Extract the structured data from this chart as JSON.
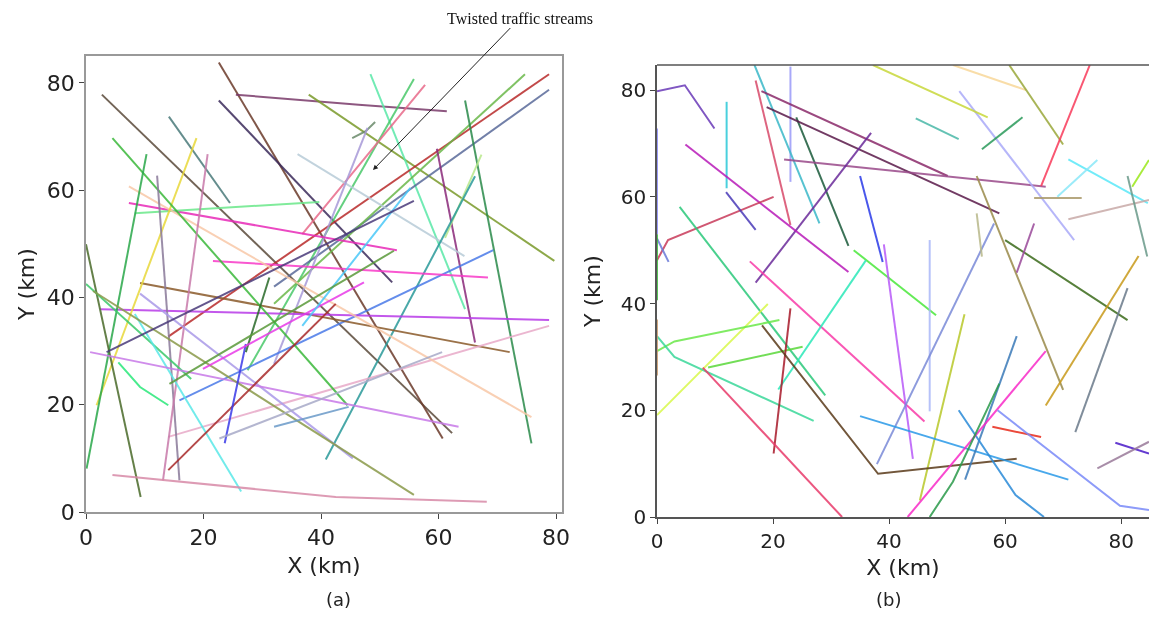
{
  "chart_data": [
    {
      "type": "line",
      "xlabel": "X (km)",
      "ylabel": "Y (km)",
      "xlim": [
        0,
        81
      ],
      "ylim": [
        0,
        85
      ],
      "xticks": [
        0,
        20,
        40,
        60,
        80
      ],
      "yticks": [
        0,
        20,
        40,
        60,
        80
      ],
      "annotations": [
        "Twisted traffic streams",
        "(a)"
      ],
      "series": [
        {
          "color": "#5a4a3a",
          "x": [
            2.7,
            62.3
          ],
          "values": [
            77.8,
            14.7
          ]
        },
        {
          "color": "#6b3a2a",
          "x": [
            22.6,
            60.7
          ],
          "values": [
            83.8,
            13.7
          ]
        },
        {
          "color": "#7a3a6a",
          "x": [
            25.5,
            46.4,
            61.4
          ],
          "values": [
            77.8,
            75.9,
            74.7
          ]
        },
        {
          "color": "#3a2a5a",
          "x": [
            22.6,
            52.1
          ],
          "values": [
            76.7,
            42.8
          ]
        },
        {
          "color": "#7a9a2a",
          "x": [
            37.9,
            79.7
          ],
          "values": [
            77.8,
            46.8
          ]
        },
        {
          "color": "#5ae8a8",
          "x": [
            48.4,
            64.5
          ],
          "values": [
            81.6,
            37.8
          ]
        },
        {
          "color": "#4ac86a",
          "x": [
            55.8,
            27.5
          ],
          "values": [
            80.7,
            26.4
          ]
        },
        {
          "color": "#e86a8a",
          "x": [
            57.7,
            36.8
          ],
          "values": [
            79.6,
            51.8
          ]
        },
        {
          "color": "#b82a2a",
          "x": [
            78.8,
            14.0
          ],
          "values": [
            81.6,
            32.7
          ]
        },
        {
          "color": "#5a6a9a",
          "x": [
            78.8,
            32.0
          ],
          "values": [
            78.7,
            42.0
          ]
        },
        {
          "color": "#6ab84a",
          "x": [
            74.7,
            32.0
          ],
          "values": [
            81.6,
            38.8
          ]
        },
        {
          "color": "#2a8a4a",
          "x": [
            64.5,
            75.8
          ],
          "values": [
            76.7,
            12.8
          ]
        },
        {
          "color": "#8a2a7a",
          "x": [
            59.7,
            66.2
          ],
          "values": [
            67.7,
            31.6
          ]
        },
        {
          "color": "#b8ccd8",
          "x": [
            36.0,
            64.4
          ],
          "values": [
            66.7,
            47.7
          ]
        },
        {
          "color": "#b8e88a",
          "x": [
            67.3,
            61.1
          ],
          "values": [
            66.6,
            51.1
          ]
        },
        {
          "color": "#2a9a9a",
          "x": [
            66.2,
            40.8
          ],
          "values": [
            62.6,
            9.8
          ]
        },
        {
          "color": "#6a8a6a",
          "x": [
            49.2,
            47.6,
            45.3
          ],
          "values": [
            72.7,
            71.0,
            69.7
          ]
        },
        {
          "color": "#a89ad8",
          "x": [
            47.9,
            32.0
          ],
          "values": [
            71.6,
            27.6
          ]
        },
        {
          "color": "#4a7ae8",
          "x": [
            69.3,
            15.9
          ],
          "values": [
            48.8,
            20.8
          ]
        },
        {
          "color": "#e82ab8",
          "x": [
            7.3,
            52.9
          ],
          "values": [
            57.6,
            48.8
          ]
        },
        {
          "color": "#6ae88a",
          "x": [
            8.3,
            39.7
          ],
          "values": [
            55.7,
            57.8
          ]
        },
        {
          "color": "#f83ac8",
          "x": [
            21.6,
            68.4
          ],
          "values": [
            46.8,
            43.7
          ]
        },
        {
          "color": "#8a5a2a",
          "x": [
            9.2,
            72.1
          ],
          "values": [
            42.7,
            29.8
          ]
        },
        {
          "color": "#b83ae8",
          "x": [
            2.5,
            78.8
          ],
          "values": [
            37.8,
            35.8
          ]
        },
        {
          "color": "#e8aac8",
          "x": [
            78.8,
            14.0
          ],
          "values": [
            34.7,
            14.0
          ]
        },
        {
          "color": "#f8c8a8",
          "x": [
            7.3,
            75.8
          ],
          "values": [
            60.7,
            17.7
          ]
        },
        {
          "color": "#4a7a7a",
          "x": [
            14.1,
            24.5
          ],
          "values": [
            73.7,
            57.6
          ]
        },
        {
          "color": "#e8d83a",
          "x": [
            18.8,
            1.8
          ],
          "values": [
            69.7,
            19.9
          ]
        },
        {
          "color": "#3ab83a",
          "x": [
            4.5,
            44.5
          ],
          "values": [
            69.7,
            19.9
          ]
        },
        {
          "color": "#2aa84a",
          "x": [
            10.3,
            0.1
          ],
          "values": [
            66.7,
            8.1
          ]
        },
        {
          "color": "#8a7a9a",
          "x": [
            12.1,
            15.9
          ],
          "values": [
            62.7,
            5.9
          ]
        },
        {
          "color": "#c87aaa",
          "x": [
            20.7,
            13.1
          ],
          "values": [
            66.7,
            5.9
          ]
        },
        {
          "color": "#4a6a2a",
          "x": [
            0.0,
            9.3
          ],
          "values": [
            49.9,
            2.8
          ]
        },
        {
          "color": "#3ac86a",
          "x": [
            0.0,
            17.9
          ],
          "values": [
            42.5,
            24.8
          ]
        },
        {
          "color": "#aa9ae8",
          "x": [
            9.2,
            45.4
          ],
          "values": [
            40.7,
            10.0
          ]
        },
        {
          "color": "#5ae8e8",
          "x": [
            8.3,
            26.4
          ],
          "values": [
            36.9,
            3.8
          ]
        },
        {
          "color": "#2ae87a",
          "x": [
            5.5,
            9.2,
            14.0
          ],
          "values": [
            27.9,
            23.3,
            19.9
          ]
        },
        {
          "color": "#c87ae8",
          "x": [
            0.7,
            63.4
          ],
          "values": [
            29.8,
            15.9
          ]
        },
        {
          "color": "#8a9a4a",
          "x": [
            1.2,
            55.8
          ],
          "values": [
            41.2,
            3.2
          ]
        },
        {
          "color": "#d88aa8",
          "x": [
            4.5,
            42.5,
            68.2
          ],
          "values": [
            6.9,
            2.8,
            1.9
          ]
        },
        {
          "color": "#a82a2a",
          "x": [
            42.5,
            14.0
          ],
          "values": [
            38.8,
            7.8
          ]
        },
        {
          "color": "#3a3ae8",
          "x": [
            27.2,
            23.6
          ],
          "values": [
            31.3,
            12.8
          ]
        },
        {
          "color": "#2a6a2a",
          "x": [
            31.2,
            27.2
          ],
          "values": [
            43.7,
            29.8
          ]
        },
        {
          "color": "#e83ae8",
          "x": [
            47.3,
            19.9
          ],
          "values": [
            42.8,
            26.7
          ]
        },
        {
          "color": "#4ac8f8",
          "x": [
            55.2,
            36.8
          ],
          "values": [
            60.4,
            34.7
          ]
        },
        {
          "color": "#a8aac8",
          "x": [
            60.6,
            22.7
          ],
          "values": [
            29.8,
            13.7
          ]
        },
        {
          "color": "#6a9ac8",
          "x": [
            32.0,
            44.7
          ],
          "values": [
            15.9,
            19.6
          ]
        },
        {
          "color": "#5a9a3a",
          "x": [
            52.4,
            14.2
          ],
          "values": [
            48.7,
            23.9
          ]
        },
        {
          "color": "#4a3a7a",
          "x": [
            55.8,
            3.5
          ],
          "values": [
            58.0,
            29.8
          ]
        }
      ]
    },
    {
      "type": "line",
      "xlabel": "X (km)",
      "ylabel": "Y (km)",
      "xlim": [
        0,
        84.8
      ],
      "ylim": [
        0,
        84.7
      ],
      "xticks": [
        0,
        20,
        40,
        60,
        80
      ],
      "yticks": [
        0,
        20,
        40,
        60,
        80
      ],
      "annotations": [
        "(b)"
      ],
      "series": [
        {
          "color": "#6a3ab8",
          "x": [
            0,
            4.8,
            9.9
          ],
          "values": [
            79.8,
            80.9,
            72.8
          ]
        },
        {
          "color": "#2ac8d8",
          "x": [
            12,
            12
          ],
          "values": [
            77.8,
            61.6
          ]
        },
        {
          "color": "#9a9af8",
          "x": [
            23,
            23
          ],
          "values": [
            84.4,
            62.8
          ]
        },
        {
          "color": "#3ab8c8",
          "x": [
            16.8,
            28
          ],
          "values": [
            84.7,
            55
          ]
        },
        {
          "color": "#d84a6a",
          "x": [
            17,
            23
          ],
          "values": [
            81.8,
            54.7
          ]
        },
        {
          "color": "#1a5a3a",
          "x": [
            24,
            33
          ],
          "values": [
            74.9,
            50.8
          ]
        },
        {
          "color": "#8a2a6a",
          "x": [
            18,
            50.1
          ],
          "values": [
            79.8,
            63.9
          ]
        },
        {
          "color": "#5a1a4a",
          "x": [
            18.9,
            59
          ],
          "values": [
            76.8,
            56.9
          ]
        },
        {
          "color": "#9a4a8a",
          "x": [
            21.9,
            67
          ],
          "values": [
            67,
            61.9
          ]
        },
        {
          "color": "#6a2a9a",
          "x": [
            36.9,
            17
          ],
          "values": [
            72,
            43.9
          ]
        },
        {
          "color": "#b81ab8",
          "x": [
            4.9,
            33
          ],
          "values": [
            69.8,
            45.9
          ]
        },
        {
          "color": "#c83a5a",
          "x": [
            0,
            1.9,
            20.1
          ],
          "values": [
            48.1,
            51.9,
            60
          ]
        },
        {
          "color": "#4a3ab8",
          "x": [
            11.9,
            17
          ],
          "values": [
            60.9,
            53.8
          ]
        },
        {
          "color": "#6a7ad8",
          "x": [
            0,
            2
          ],
          "values": [
            52.2,
            47.8
          ]
        },
        {
          "color": "#2ac87a",
          "x": [
            3.9,
            29
          ],
          "values": [
            58.1,
            22.8
          ]
        },
        {
          "color": "#f83aa8",
          "x": [
            16,
            46.1
          ],
          "values": [
            47.9,
            17.9
          ]
        },
        {
          "color": "#2a3ae8",
          "x": [
            35,
            38.9
          ],
          "values": [
            63.9,
            47.8
          ]
        },
        {
          "color": "#4ae83a",
          "x": [
            33.9,
            48.1
          ],
          "values": [
            50,
            37.8
          ]
        },
        {
          "color": "#2ae8b8",
          "x": [
            36,
            20.9
          ],
          "values": [
            48.1,
            23.9
          ]
        },
        {
          "color": "#b85af8",
          "x": [
            39.1,
            44.1
          ],
          "values": [
            51.1,
            10.9
          ]
        },
        {
          "color": "#aab8f8",
          "x": [
            47,
            47
          ],
          "values": [
            51.9,
            19.8
          ]
        },
        {
          "color": "#7a8ad8",
          "x": [
            58.1,
            37.9
          ],
          "values": [
            55,
            9.9
          ]
        },
        {
          "color": "#b8c82a",
          "x": [
            53,
            45.3
          ],
          "values": [
            38,
            3.1
          ]
        },
        {
          "color": "#d8f84a",
          "x": [
            19.1,
            0
          ],
          "values": [
            39.9,
            19.1
          ]
        },
        {
          "color": "#6ae84a",
          "x": [
            0,
            3,
            21.1
          ],
          "values": [
            31.1,
            32.9,
            36.9
          ]
        },
        {
          "color": "#5ad83a",
          "x": [
            8.8,
            25.1
          ],
          "values": [
            28,
            31.9
          ]
        },
        {
          "color": "#3ad89a",
          "x": [
            0,
            3,
            27
          ],
          "values": [
            33.9,
            30,
            18
          ]
        },
        {
          "color": "#a81a2a",
          "x": [
            23,
            20.1
          ],
          "values": [
            39.1,
            11.9
          ]
        },
        {
          "color": "#e83a6a",
          "x": [
            7.9,
            31.9
          ],
          "values": [
            28,
            0
          ]
        },
        {
          "color": "#5a3a1a",
          "x": [
            18.1,
            38.1,
            62
          ],
          "values": [
            35.9,
            8.1,
            10.9
          ]
        },
        {
          "color": "#2a9ae8",
          "x": [
            35,
            70.9
          ],
          "values": [
            18.9,
            7
          ]
        },
        {
          "color": "#3a7ab8",
          "x": [
            62,
            53.1
          ],
          "values": [
            33.9,
            7
          ]
        },
        {
          "color": "#2a8ad8",
          "x": [
            52,
            61.8,
            66.7
          ],
          "values": [
            20,
            4.1,
            0
          ]
        },
        {
          "color": "#f82ac8",
          "x": [
            67,
            43.2
          ],
          "values": [
            31.1,
            0
          ]
        },
        {
          "color": "#2a9a4a",
          "x": [
            59,
            51,
            47
          ],
          "values": [
            25,
            6.6,
            0
          ]
        },
        {
          "color": "#e82a1a",
          "x": [
            57.8,
            66.2
          ],
          "values": [
            16.9,
            15
          ]
        },
        {
          "color": "#7a8af8",
          "x": [
            58.7,
            79.8,
            84.8
          ],
          "values": [
            20,
            2.1,
            1.3
          ]
        },
        {
          "color": "#9a8a4a",
          "x": [
            55.1,
            70
          ],
          "values": [
            63.9,
            23.8
          ]
        },
        {
          "color": "#3a6a1a",
          "x": [
            60,
            81.1
          ],
          "values": [
            51.9,
            36.9
          ]
        },
        {
          "color": "#c89a1a",
          "x": [
            83,
            67
          ],
          "values": [
            48.9,
            20.9
          ]
        },
        {
          "color": "#6a7a8a",
          "x": [
            81.1,
            72.1
          ],
          "values": [
            42.9,
            15.9
          ]
        },
        {
          "color": "#9a4a9a",
          "x": [
            65,
            62
          ],
          "values": [
            55,
            45.8
          ]
        },
        {
          "color": "#b8b88a",
          "x": [
            55.1,
            56
          ],
          "values": [
            56.9,
            48.8
          ]
        },
        {
          "color": "#aaaaf8",
          "x": [
            52.1,
            71.9
          ],
          "values": [
            79.8,
            51.9
          ]
        },
        {
          "color": "#2a9a5a",
          "x": [
            56,
            63
          ],
          "values": [
            68.9,
            74.9
          ]
        },
        {
          "color": "#4ab8a8",
          "x": [
            44.6,
            52
          ],
          "values": [
            74.7,
            70.8
          ]
        },
        {
          "color": "#c8d83a",
          "x": [
            37.2,
            57
          ],
          "values": [
            84.7,
            74.9
          ]
        },
        {
          "color": "#f8d89a",
          "x": [
            51,
            63.6
          ],
          "values": [
            84.7,
            80
          ]
        },
        {
          "color": "#9aa83a",
          "x": [
            60.7,
            70
          ],
          "values": [
            84.7,
            69.8
          ]
        },
        {
          "color": "#f83a5a",
          "x": [
            74.6,
            66.2
          ],
          "values": [
            84.7,
            62
          ]
        },
        {
          "color": "#5ae8f8",
          "x": [
            70.9,
            84.6
          ],
          "values": [
            67,
            58.8
          ]
        },
        {
          "color": "#8ae8f8",
          "x": [
            75.9,
            69
          ],
          "values": [
            66.9,
            60
          ]
        },
        {
          "color": "#aa9a6a",
          "x": [
            65,
            73.2
          ],
          "values": [
            59.8,
            59.8
          ]
        },
        {
          "color": "#c8aaa8",
          "x": [
            70.9,
            84.8
          ],
          "values": [
            55.8,
            59.4
          ]
        },
        {
          "color": "#6a9a8a",
          "x": [
            81.1,
            84.5
          ],
          "values": [
            63.9,
            48.8
          ]
        },
        {
          "color": "#9ae81a",
          "x": [
            81.9,
            84.8
          ],
          "values": [
            61.9,
            66.9
          ]
        },
        {
          "color": "#4a1ac8",
          "x": [
            79,
            84.8
          ],
          "values": [
            13.9,
            11.9
          ]
        },
        {
          "color": "#9a7a9a",
          "x": [
            75.9,
            84.8
          ],
          "values": [
            9.1,
            14.1
          ]
        },
        {
          "color": "#8a8af8",
          "x": [
            0,
            0
          ],
          "values": [
            72.8,
            53
          ]
        },
        {
          "color": "#3ab83a",
          "x": [
            0,
            0
          ],
          "values": [
            53,
            40.6
          ]
        },
        {
          "color": "#c89a6a",
          "x": [
            0,
            0
          ],
          "values": [
            37,
            26.5
          ]
        }
      ]
    }
  ]
}
